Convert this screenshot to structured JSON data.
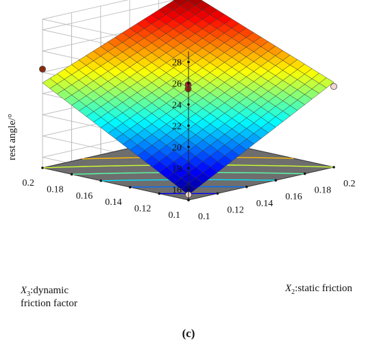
{
  "chart_data": {
    "type": "surface3d",
    "panel_label": "(c)",
    "zlabel": "rest angle/°",
    "xlabel_prefix": "X",
    "xlabel_sub": "2",
    "xlabel_text": ":static friction",
    "ylabel_prefix": "X",
    "ylabel_sub": "3",
    "ylabel_text_line1": ":dynamic",
    "ylabel_text_line2": "friction factor",
    "x_ticks": [
      "0.1",
      "0.12",
      "0.14",
      "0.16",
      "0.18",
      "0.2"
    ],
    "y_ticks": [
      "0.2",
      "0.18",
      "0.16",
      "0.14",
      "0.12",
      "0.1"
    ],
    "z_ticks": [
      "16",
      "18",
      "20",
      "22",
      "24",
      "26",
      "28"
    ],
    "x_range": [
      0.1,
      0.2
    ],
    "y_range": [
      0.1,
      0.2
    ],
    "z_range": [
      15,
      29
    ],
    "surface_corners": [
      {
        "x": 0.1,
        "y": 0.1,
        "z": 15.5
      },
      {
        "x": 0.2,
        "y": 0.1,
        "z": 23.0
      },
      {
        "x": 0.2,
        "y": 0.2,
        "z": 28.5
      },
      {
        "x": 0.1,
        "y": 0.2,
        "z": 23.0
      }
    ],
    "design_points": [
      {
        "x": 0.1,
        "y": 0.1,
        "z": 15.5,
        "color": "#f3d7d2"
      },
      {
        "x": 0.2,
        "y": 0.1,
        "z": 22.6,
        "color": "#f3d7d2"
      },
      {
        "x": 0.2,
        "y": 0.2,
        "z": 28.7,
        "color": "#b22222"
      },
      {
        "x": 0.1,
        "y": 0.2,
        "z": 24.3,
        "color": "#8b2a10"
      },
      {
        "x": 0.15,
        "y": 0.15,
        "z": 22.8,
        "color": "#b22222"
      },
      {
        "x": 0.15,
        "y": 0.15,
        "z": 22.4,
        "color": "#8b2a10"
      }
    ],
    "grid": true,
    "colormap": "jet",
    "floor_contours": true
  }
}
